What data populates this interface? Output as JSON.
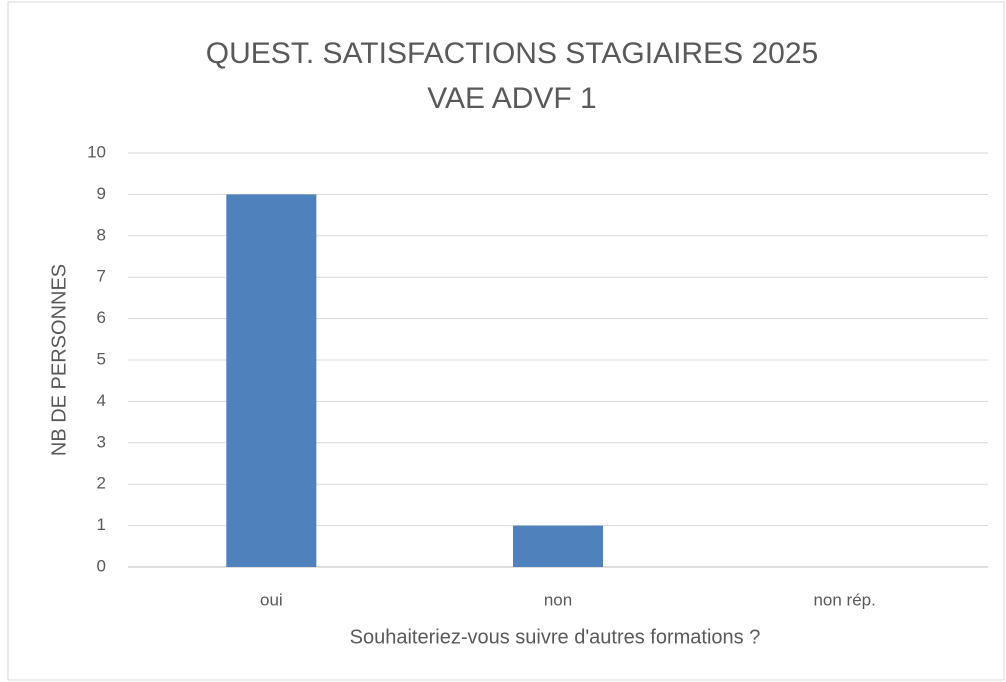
{
  "chart_data": {
    "type": "bar",
    "title": [
      "QUEST. SATISFACTIONS STAGIAIRES 2025",
      "VAE ADVF 1"
    ],
    "x_label": "Souhaiteriez-vous suivre d'autres formations ?",
    "y_label": "NB DE PERSONNES",
    "categories": [
      "oui",
      "non",
      "non rép."
    ],
    "values": [
      9,
      1,
      0
    ],
    "color": "#4f81bd",
    "ylim": [
      0,
      10
    ],
    "yticks": [
      0,
      1,
      2,
      3,
      4,
      5,
      6,
      7,
      8,
      9,
      10
    ],
    "grid": true
  }
}
